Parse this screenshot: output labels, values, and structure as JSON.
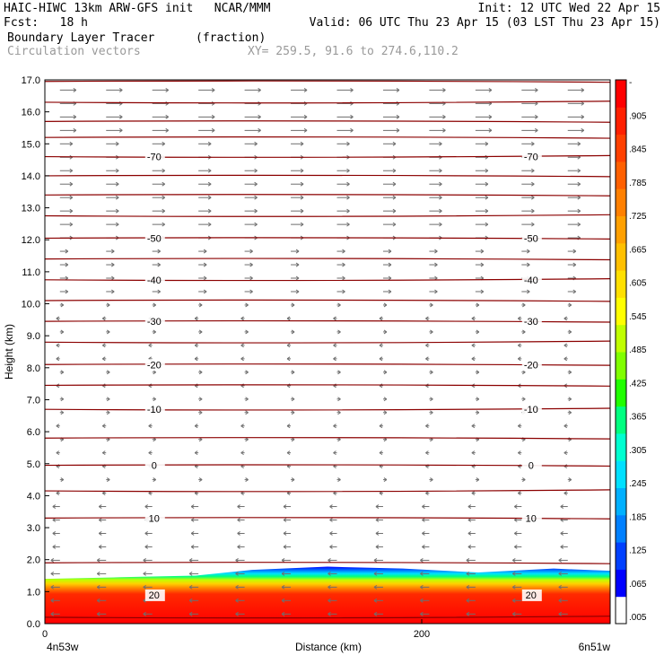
{
  "header": {
    "line1_left": "HAIC-HIWC 13km ARW-GFS init   NCAR/MMM",
    "line1_right": "Init: 12 UTC Wed 22 Apr 15",
    "line2_left": "Fcst:   18 h",
    "line2_right": "Valid: 06 UTC Thu 23 Apr 15 (03 LST Thu 23 Apr 15)",
    "line3_field": "Boundary Layer Tracer",
    "line3_units": "(fraction)",
    "line4_field": "Circulation vectors",
    "line4_xy": "XY= 259.5, 91.6 to 274.6,110.2"
  },
  "axis_labels": {
    "ylabel": "Height (km)",
    "xlabel": "Distance (km)",
    "x_left_coord": "4n53w",
    "x_right_coord": "6n51w"
  },
  "colors": {
    "contour": "#8b0000",
    "vector": "#6e6e6e",
    "colorbar": [
      "#ffffff",
      "#0000ff",
      "#0040ff",
      "#0080ff",
      "#00b0ff",
      "#00e0ff",
      "#00ffd0",
      "#00ff80",
      "#20ff00",
      "#80ff00",
      "#c0ff00",
      "#ffff00",
      "#ffe000",
      "#ffc000",
      "#ffa000",
      "#ff8000",
      "#ff6000",
      "#ff4000",
      "#ff2000",
      "#ff0000"
    ]
  },
  "chart_data": {
    "type": "heatmap",
    "title": "Boundary Layer Tracer (fraction)",
    "xlabel": "Distance (km)",
    "ylabel": "Height (km)",
    "xlim": [
      0,
      300
    ],
    "ylim": [
      0,
      17
    ],
    "x_ticks": [
      0,
      200
    ],
    "y_ticks": [
      "0.0",
      "1.0",
      "2.0",
      "3.0",
      "4.0",
      "5.0",
      "6.0",
      "7.0",
      "8.0",
      "9.0",
      "10.0",
      "11.0",
      "12.0",
      "13.0",
      "14.0",
      "15.0",
      "16.0",
      "17.0"
    ],
    "colorbar_labels": [
      "-",
      ".905",
      ".845",
      ".785",
      ".725",
      ".665",
      ".605",
      ".545",
      ".485",
      ".425",
      ".365",
      ".305",
      ".245",
      ".185",
      ".125",
      ".065",
      ".005"
    ],
    "boundary_layer_top_km": [
      {
        "x": 0,
        "y": 1.4
      },
      {
        "x": 40,
        "y": 1.45
      },
      {
        "x": 80,
        "y": 1.5
      },
      {
        "x": 110,
        "y": 1.68
      },
      {
        "x": 150,
        "y": 1.78
      },
      {
        "x": 190,
        "y": 1.72
      },
      {
        "x": 230,
        "y": 1.6
      },
      {
        "x": 270,
        "y": 1.72
      },
      {
        "x": 300,
        "y": 1.65
      }
    ],
    "temperature_contours": [
      {
        "label": "20",
        "height_km": 0.9
      },
      {
        "label": "10",
        "height_km": 3.3
      },
      {
        "label": "0",
        "height_km": 4.95
      },
      {
        "label": "-10",
        "height_km": 6.7
      },
      {
        "label": "-20",
        "height_km": 8.1
      },
      {
        "label": "-30",
        "height_km": 9.45
      },
      {
        "label": "-40",
        "height_km": 10.75
      },
      {
        "label": "-50",
        "height_km": 12.05
      },
      {
        "label": "-70",
        "height_km": 14.6
      }
    ],
    "vector_field": "Circulation vectors: westward flow near surface and low levels, weak flow mid levels, strong eastward flow above 12 km"
  }
}
